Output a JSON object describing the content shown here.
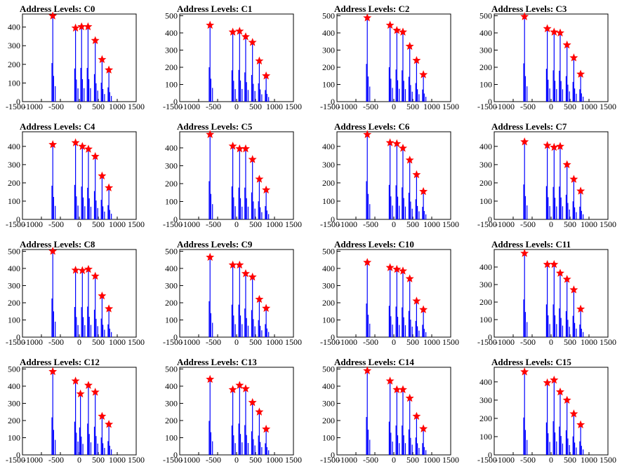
{
  "chart_data": {
    "type": "bar",
    "x_ticks": [
      "-1500",
      "-1000",
      "-500",
      "0",
      "500",
      "1000",
      "1500"
    ],
    "xlim": [
      -1500,
      1500
    ],
    "marker_color": "#ff0000",
    "bar_color": "#0000ff",
    "panels": [
      {
        "title": "Address Levels: C0",
        "ylim": [
          0,
          470
        ],
        "y_ticks": [
          "0",
          "100",
          "200",
          "300",
          "400"
        ],
        "peaks": [
          {
            "x": -700,
            "y": 460
          },
          {
            "x": -100,
            "y": 395
          },
          {
            "x": 60,
            "y": 402
          },
          {
            "x": 230,
            "y": 402
          },
          {
            "x": 420,
            "y": 328
          },
          {
            "x": 600,
            "y": 226
          },
          {
            "x": 780,
            "y": 170
          }
        ]
      },
      {
        "title": "Address Levels: C1",
        "ylim": [
          0,
          510
        ],
        "y_ticks": [
          "0",
          "100",
          "200",
          "300",
          "400",
          "500"
        ],
        "peaks": [
          {
            "x": -700,
            "y": 445
          },
          {
            "x": -100,
            "y": 405
          },
          {
            "x": 80,
            "y": 410
          },
          {
            "x": 240,
            "y": 378
          },
          {
            "x": 420,
            "y": 345
          },
          {
            "x": 600,
            "y": 237
          },
          {
            "x": 780,
            "y": 150
          }
        ]
      },
      {
        "title": "Address Levels: C2",
        "ylim": [
          0,
          510
        ],
        "y_ticks": [
          "0",
          "100",
          "200",
          "300",
          "400",
          "500"
        ],
        "peaks": [
          {
            "x": -700,
            "y": 488
          },
          {
            "x": -100,
            "y": 445
          },
          {
            "x": 80,
            "y": 415
          },
          {
            "x": 240,
            "y": 405
          },
          {
            "x": 420,
            "y": 322
          },
          {
            "x": 600,
            "y": 240
          },
          {
            "x": 780,
            "y": 157
          }
        ]
      },
      {
        "title": "Address Levels: C3",
        "ylim": [
          0,
          510
        ],
        "y_ticks": [
          "0",
          "100",
          "200",
          "300",
          "400",
          "500"
        ],
        "peaks": [
          {
            "x": -700,
            "y": 495
          },
          {
            "x": -100,
            "y": 425
          },
          {
            "x": 80,
            "y": 405
          },
          {
            "x": 240,
            "y": 400
          },
          {
            "x": 420,
            "y": 330
          },
          {
            "x": 600,
            "y": 255
          },
          {
            "x": 780,
            "y": 160
          }
        ]
      },
      {
        "title": "Address Levels: C4",
        "ylim": [
          0,
          480
        ],
        "y_ticks": [
          "0",
          "100",
          "200",
          "300",
          "400"
        ],
        "peaks": [
          {
            "x": -700,
            "y": 410
          },
          {
            "x": -100,
            "y": 420
          },
          {
            "x": 80,
            "y": 400
          },
          {
            "x": 240,
            "y": 385
          },
          {
            "x": 420,
            "y": 345
          },
          {
            "x": 600,
            "y": 238
          },
          {
            "x": 780,
            "y": 173
          }
        ]
      },
      {
        "title": "Address Levels: C5",
        "ylim": [
          0,
          490
        ],
        "y_ticks": [
          "0",
          "100",
          "200",
          "300",
          "400"
        ],
        "peaks": [
          {
            "x": -700,
            "y": 475
          },
          {
            "x": -100,
            "y": 410
          },
          {
            "x": 80,
            "y": 395
          },
          {
            "x": 240,
            "y": 395
          },
          {
            "x": 420,
            "y": 335
          },
          {
            "x": 600,
            "y": 225
          },
          {
            "x": 780,
            "y": 165
          }
        ]
      },
      {
        "title": "Address Levels: C6",
        "ylim": [
          0,
          480
        ],
        "y_ticks": [
          "0",
          "100",
          "200",
          "300",
          "400"
        ],
        "peaks": [
          {
            "x": -700,
            "y": 465
          },
          {
            "x": -100,
            "y": 420
          },
          {
            "x": 80,
            "y": 415
          },
          {
            "x": 240,
            "y": 390
          },
          {
            "x": 420,
            "y": 325
          },
          {
            "x": 600,
            "y": 245
          },
          {
            "x": 780,
            "y": 153
          }
        ]
      },
      {
        "title": "Address Levels: C7",
        "ylim": [
          0,
          480
        ],
        "y_ticks": [
          "0",
          "100",
          "200",
          "300",
          "400"
        ],
        "peaks": [
          {
            "x": -700,
            "y": 425
          },
          {
            "x": -100,
            "y": 405
          },
          {
            "x": 80,
            "y": 395
          },
          {
            "x": 240,
            "y": 400
          },
          {
            "x": 420,
            "y": 300
          },
          {
            "x": 600,
            "y": 220
          },
          {
            "x": 780,
            "y": 155
          }
        ]
      },
      {
        "title": "Address Levels: C8",
        "ylim": [
          0,
          510
        ],
        "y_ticks": [
          "0",
          "100",
          "200",
          "300",
          "400",
          "500"
        ],
        "peaks": [
          {
            "x": -700,
            "y": 500
          },
          {
            "x": -100,
            "y": 390
          },
          {
            "x": 80,
            "y": 388
          },
          {
            "x": 240,
            "y": 395
          },
          {
            "x": 420,
            "y": 355
          },
          {
            "x": 600,
            "y": 240
          },
          {
            "x": 780,
            "y": 165
          }
        ]
      },
      {
        "title": "Address Levels: C9",
        "ylim": [
          0,
          510
        ],
        "y_ticks": [
          "0",
          "100",
          "200",
          "300",
          "400",
          "500"
        ],
        "peaks": [
          {
            "x": -700,
            "y": 465
          },
          {
            "x": -100,
            "y": 420
          },
          {
            "x": 80,
            "y": 420
          },
          {
            "x": 240,
            "y": 370
          },
          {
            "x": 420,
            "y": 350
          },
          {
            "x": 600,
            "y": 220
          },
          {
            "x": 780,
            "y": 168
          }
        ]
      },
      {
        "title": "Address Levels: C10",
        "ylim": [
          0,
          510
        ],
        "y_ticks": [
          "0",
          "100",
          "200",
          "300",
          "400",
          "500"
        ],
        "peaks": [
          {
            "x": -700,
            "y": 435
          },
          {
            "x": -100,
            "y": 405
          },
          {
            "x": 80,
            "y": 395
          },
          {
            "x": 240,
            "y": 385
          },
          {
            "x": 420,
            "y": 340
          },
          {
            "x": 600,
            "y": 210
          },
          {
            "x": 780,
            "y": 160
          }
        ]
      },
      {
        "title": "Address Levels: C11",
        "ylim": [
          0,
          500
        ],
        "y_ticks": [
          "0",
          "100",
          "200",
          "300",
          "400"
        ],
        "peaks": [
          {
            "x": -700,
            "y": 478
          },
          {
            "x": -100,
            "y": 415
          },
          {
            "x": 80,
            "y": 415
          },
          {
            "x": 240,
            "y": 365
          },
          {
            "x": 420,
            "y": 330
          },
          {
            "x": 600,
            "y": 270
          },
          {
            "x": 780,
            "y": 160
          }
        ]
      },
      {
        "title": "Address Levels: C12",
        "ylim": [
          0,
          510
        ],
        "y_ticks": [
          "0",
          "100",
          "200",
          "300",
          "400",
          "500"
        ],
        "peaks": [
          {
            "x": -700,
            "y": 485
          },
          {
            "x": -100,
            "y": 430
          },
          {
            "x": 30,
            "y": 355
          },
          {
            "x": 240,
            "y": 405
          },
          {
            "x": 420,
            "y": 365
          },
          {
            "x": 600,
            "y": 225
          },
          {
            "x": 780,
            "y": 178
          }
        ]
      },
      {
        "title": "Address Levels: C13",
        "ylim": [
          0,
          510
        ],
        "y_ticks": [
          "0",
          "100",
          "200",
          "300",
          "400",
          "500"
        ],
        "peaks": [
          {
            "x": -700,
            "y": 440
          },
          {
            "x": -100,
            "y": 380
          },
          {
            "x": 80,
            "y": 405
          },
          {
            "x": 240,
            "y": 385
          },
          {
            "x": 420,
            "y": 305
          },
          {
            "x": 600,
            "y": 250
          },
          {
            "x": 780,
            "y": 150
          }
        ]
      },
      {
        "title": "Address Levels: C14",
        "ylim": [
          0,
          510
        ],
        "y_ticks": [
          "0",
          "100",
          "200",
          "300",
          "400",
          "500"
        ],
        "peaks": [
          {
            "x": -700,
            "y": 490
          },
          {
            "x": -100,
            "y": 430
          },
          {
            "x": 80,
            "y": 380
          },
          {
            "x": 240,
            "y": 380
          },
          {
            "x": 420,
            "y": 330
          },
          {
            "x": 600,
            "y": 225
          },
          {
            "x": 780,
            "y": 152
          }
        ]
      },
      {
        "title": "Address Levels: C15",
        "ylim": [
          0,
          480
        ],
        "y_ticks": [
          "0",
          "100",
          "200",
          "300",
          "400"
        ],
        "peaks": [
          {
            "x": -700,
            "y": 455
          },
          {
            "x": -100,
            "y": 395
          },
          {
            "x": 80,
            "y": 410
          },
          {
            "x": 240,
            "y": 345
          },
          {
            "x": 420,
            "y": 300
          },
          {
            "x": 600,
            "y": 225
          },
          {
            "x": 780,
            "y": 165
          }
        ]
      }
    ]
  }
}
